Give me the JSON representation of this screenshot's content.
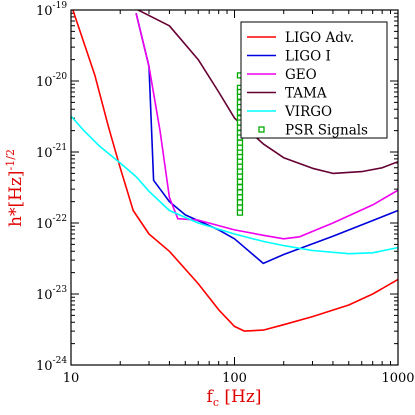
{
  "chart_data": {
    "type": "line",
    "x_scale": "log",
    "y_scale": "log",
    "xlim": [
      10,
      1000
    ],
    "ylim": [
      1e-24,
      1e-19
    ],
    "x_ticks": [
      {
        "value": 10,
        "label": "10"
      },
      {
        "value": 100,
        "label": "100"
      },
      {
        "value": 1000,
        "label": "1000"
      }
    ],
    "y_ticks": [
      {
        "value": 1e-24,
        "base": "10",
        "exp": "-24"
      },
      {
        "value": 1e-23,
        "base": "10",
        "exp": "-23"
      },
      {
        "value": 1e-22,
        "base": "10",
        "exp": "-22"
      },
      {
        "value": 1e-21,
        "base": "10",
        "exp": "-21"
      },
      {
        "value": 1e-20,
        "base": "10",
        "exp": "-20"
      },
      {
        "value": 1e-19,
        "base": "10",
        "exp": "-19"
      }
    ],
    "xlabel": {
      "main": "f",
      "sub": "c",
      "rest": " [Hz]"
    },
    "ylabel": {
      "main": "h*[Hz]",
      "exp": "-1/2"
    },
    "legend_position": "top-right",
    "series": [
      {
        "name": "LIGO Adv.",
        "color": "#ff0000",
        "points": [
          [
            10,
            1.2e-19
          ],
          [
            14,
            1.2e-20
          ],
          [
            17,
            2.2e-21
          ],
          [
            20,
            6e-22
          ],
          [
            24,
            1.5e-22
          ],
          [
            30,
            7e-23
          ],
          [
            40,
            4e-23
          ],
          [
            60,
            1.4e-23
          ],
          [
            80,
            6e-24
          ],
          [
            100,
            3.5e-24
          ],
          [
            115,
            3e-24
          ],
          [
            150,
            3.1e-24
          ],
          [
            200,
            3.7e-24
          ],
          [
            300,
            4.8e-24
          ],
          [
            500,
            7e-24
          ],
          [
            700,
            1e-23
          ],
          [
            1000,
            1.6e-23
          ]
        ]
      },
      {
        "name": "LIGO I",
        "color": "#0000dd",
        "points": [
          [
            25,
            9e-20
          ],
          [
            30,
            1.6e-20
          ],
          [
            32,
            4e-22
          ],
          [
            40,
            2e-22
          ],
          [
            50,
            1.3e-22
          ],
          [
            80,
            8e-23
          ],
          [
            100,
            6e-23
          ],
          [
            150,
            2.7e-23
          ],
          [
            200,
            3.6e-23
          ],
          [
            400,
            6.5e-23
          ],
          [
            1000,
            1.5e-22
          ]
        ]
      },
      {
        "name": "GEO",
        "color": "#ee00ee",
        "points": [
          [
            25,
            9e-20
          ],
          [
            30,
            1.6e-20
          ],
          [
            35,
            2e-21
          ],
          [
            40,
            2.3e-22
          ],
          [
            45,
            1.15e-22
          ],
          [
            60,
            1.1e-22
          ],
          [
            100,
            8e-23
          ],
          [
            150,
            6.7e-23
          ],
          [
            200,
            6e-23
          ],
          [
            250,
            6.4e-23
          ],
          [
            400,
            1e-22
          ],
          [
            700,
            1.8e-22
          ],
          [
            1000,
            2.9e-22
          ]
        ]
      },
      {
        "name": "TAMA",
        "color": "#660033",
        "points": [
          [
            22,
            1.2e-19
          ],
          [
            40,
            6e-20
          ],
          [
            60,
            2e-20
          ],
          [
            80,
            7e-21
          ],
          [
            100,
            3e-21
          ],
          [
            150,
            1.3e-21
          ],
          [
            200,
            8.3e-22
          ],
          [
            300,
            5.9e-22
          ],
          [
            400,
            5e-22
          ],
          [
            600,
            5.3e-22
          ],
          [
            800,
            6e-22
          ],
          [
            1000,
            7.3e-22
          ]
        ]
      },
      {
        "name": "VIRGO",
        "color": "#00ffff",
        "points": [
          [
            10,
            3.2e-21
          ],
          [
            12,
            2e-21
          ],
          [
            15,
            1.2e-21
          ],
          [
            20,
            7e-22
          ],
          [
            25,
            4.5e-22
          ],
          [
            30,
            2.8e-22
          ],
          [
            40,
            1.5e-22
          ],
          [
            60,
            1e-22
          ],
          [
            100,
            7e-23
          ],
          [
            150,
            5.5e-23
          ],
          [
            200,
            4.8e-23
          ],
          [
            300,
            4.1e-23
          ],
          [
            500,
            3.7e-23
          ],
          [
            700,
            3.8e-23
          ],
          [
            1000,
            4.5e-23
          ]
        ]
      }
    ],
    "psr_signals": {
      "name": "PSR Signals",
      "color": "#00aa00",
      "x": 108,
      "points": [
        1.2e-20,
        8e-21,
        7e-21,
        6e-21,
        5e-21,
        4.3e-21,
        3.6e-21,
        3e-21,
        2.6e-21,
        2.2e-21,
        1.85e-21,
        1.6e-21,
        1.35e-21,
        1.15e-21,
        9.8e-22,
        8.5e-22,
        7.3e-22,
        6.2e-22,
        5.3e-22,
        4.5e-22,
        3.8e-22,
        3.2e-22,
        2.7e-22,
        2.3e-22,
        1.95e-22,
        1.65e-22,
        1.4e-22
      ]
    }
  }
}
